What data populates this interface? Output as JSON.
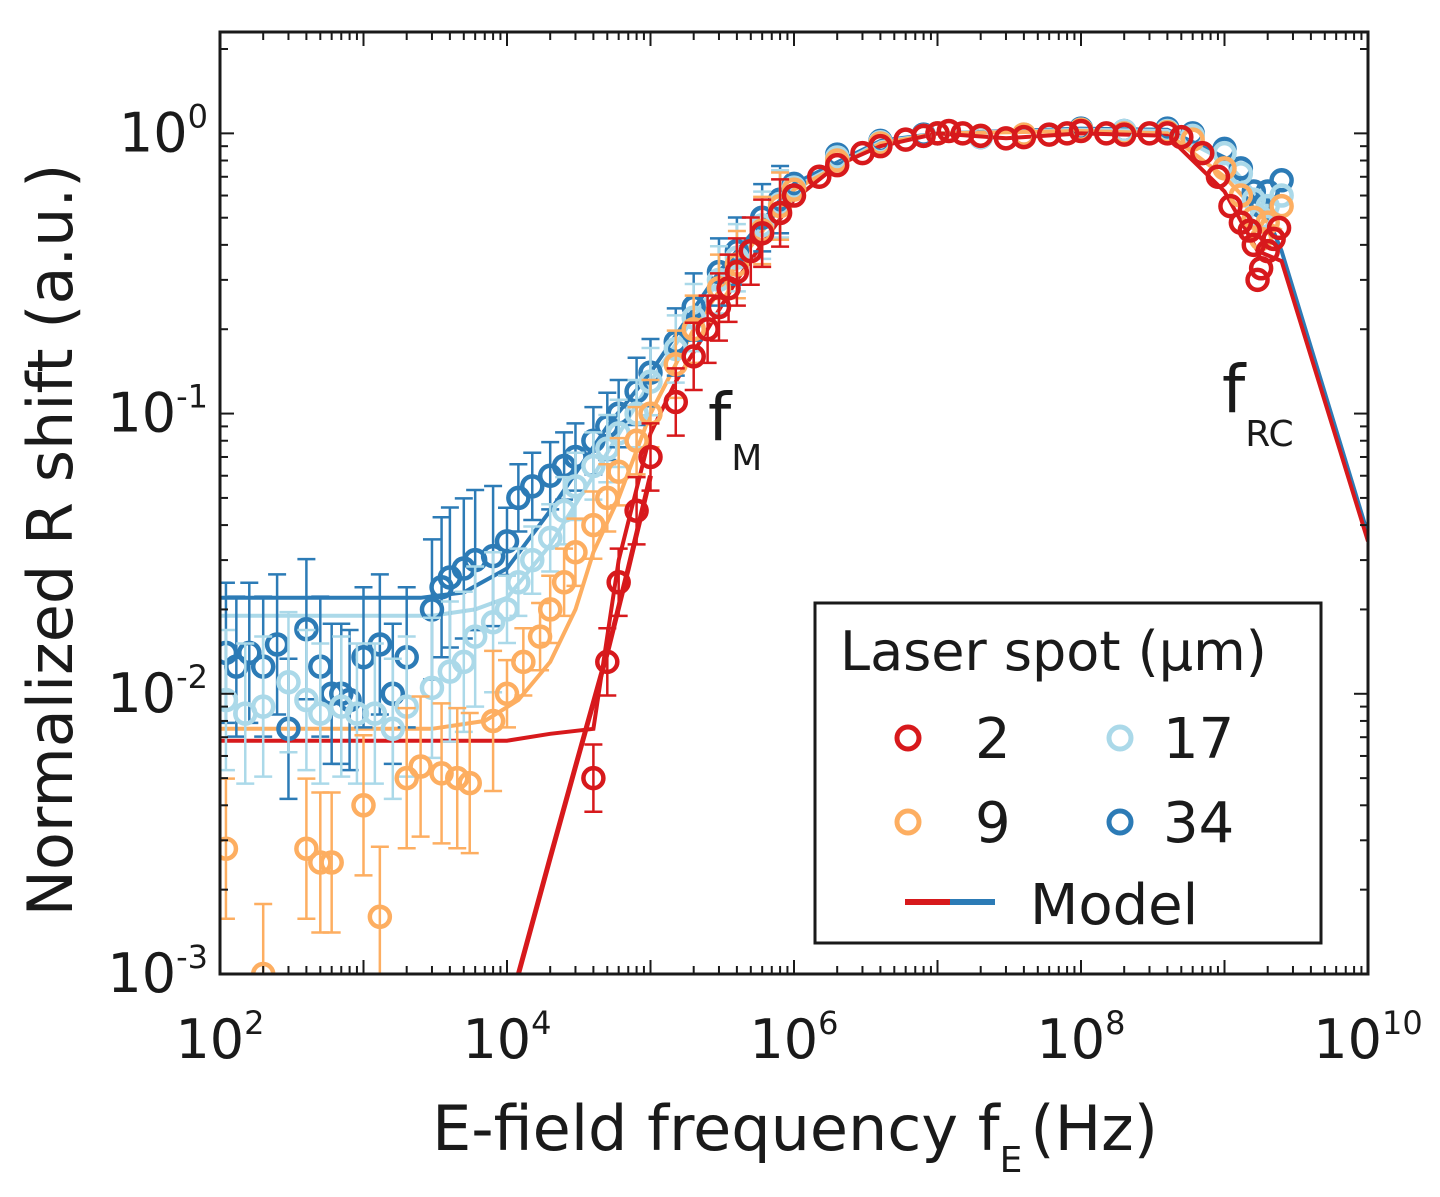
{
  "chart_data": {
    "type": "scatter",
    "xlabel": "E-field frequency f",
    "xlabel_sub": "E",
    "xlabel_unit": "(Hz)",
    "ylabel": "Normalized R shift (a.u.)",
    "x_scale": "log",
    "y_scale": "log",
    "xlim": [
      100,
      10000000000
    ],
    "ylim": [
      0.001,
      2.3
    ],
    "x_ticks": [
      {
        "base": "10",
        "exp": "2",
        "value": 100
      },
      {
        "base": "10",
        "exp": "4",
        "value": 10000
      },
      {
        "base": "10",
        "exp": "6",
        "value": 1000000
      },
      {
        "base": "10",
        "exp": "8",
        "value": 100000000
      },
      {
        "base": "10",
        "exp": "10",
        "value": 10000000000
      }
    ],
    "y_ticks": [
      {
        "base": "10",
        "exp": "0",
        "value": 1
      },
      {
        "base": "10",
        "exp": "-1",
        "value": 0.1
      },
      {
        "base": "10",
        "exp": "-2",
        "value": 0.01
      },
      {
        "base": "10",
        "exp": "-3",
        "value": 0.001
      }
    ],
    "grid": false,
    "legend": {
      "title": "Laser spot (μm)",
      "placement": "bottom-right",
      "entries": [
        "2",
        "9",
        "17",
        "34"
      ],
      "model_label": "Model"
    },
    "annotations": [
      {
        "text": "f",
        "sub": "M",
        "x": 200000,
        "y": 0.1
      },
      {
        "text": "f",
        "sub": "RC",
        "x": 2000000000,
        "y": 0.1
      }
    ],
    "colors": {
      "2": "#d7191c",
      "9": "#fdae61",
      "17": "#abd9e9",
      "34": "#2c7bb6"
    },
    "series": [
      {
        "name": "2",
        "color": "#d7191c",
        "points": [
          [
            40000,
            0.005
          ],
          [
            50000,
            0.013
          ],
          [
            60000,
            0.025
          ],
          [
            80000,
            0.045
          ],
          [
            100000,
            0.07
          ],
          [
            150000,
            0.11
          ],
          [
            200000,
            0.16
          ],
          [
            250000,
            0.2
          ],
          [
            300000,
            0.24
          ],
          [
            350000,
            0.28
          ],
          [
            400000,
            0.32
          ],
          [
            500000,
            0.38
          ],
          [
            600000,
            0.44
          ],
          [
            800000,
            0.52
          ],
          [
            1000000,
            0.6
          ],
          [
            1500000,
            0.7
          ],
          [
            2000000,
            0.77
          ],
          [
            3000000,
            0.85
          ],
          [
            4000000,
            0.9
          ],
          [
            6000000,
            0.95
          ],
          [
            8000000,
            0.98
          ],
          [
            10000000,
            1.0
          ],
          [
            12000000,
            1.02
          ],
          [
            15000000,
            1.0
          ],
          [
            20000000,
            0.98
          ],
          [
            30000000,
            0.96
          ],
          [
            40000000,
            0.97
          ],
          [
            60000000,
            0.99
          ],
          [
            80000000,
            1.0
          ],
          [
            100000000,
            1.02
          ],
          [
            150000000,
            1.0
          ],
          [
            200000000,
            0.99
          ],
          [
            300000000,
            1.0
          ],
          [
            400000000,
            1.0
          ],
          [
            500000000,
            0.97
          ],
          [
            700000000,
            0.85
          ],
          [
            900000000,
            0.7
          ],
          [
            1100000000,
            0.55
          ],
          [
            1300000000,
            0.48
          ],
          [
            1500000000,
            0.45
          ],
          [
            1600000000,
            0.4
          ],
          [
            1700000000,
            0.3
          ],
          [
            1800000000,
            0.33
          ],
          [
            2000000000,
            0.38
          ],
          [
            2200000000,
            0.42
          ],
          [
            2400000000,
            0.46
          ]
        ],
        "model": [
          [
            100,
            0.0068
          ],
          [
            10000,
            0.0068
          ],
          [
            20000,
            0.0072
          ],
          [
            40000,
            0.0075
          ],
          [
            60000,
            0.03
          ],
          [
            100000,
            0.085
          ],
          [
            150000,
            0.13
          ],
          [
            250000,
            0.2
          ],
          [
            400000,
            0.3
          ],
          [
            700000,
            0.45
          ],
          [
            1000000,
            0.58
          ],
          [
            2000000,
            0.77
          ],
          [
            4000000,
            0.9
          ],
          [
            10000000,
            1.0
          ],
          [
            30000000,
            0.96
          ],
          [
            100000000,
            1.0
          ],
          [
            400000000,
            0.98
          ],
          [
            1000000000,
            0.62
          ],
          [
            1700000000,
            0.38
          ],
          [
            2500000000,
            0.35
          ],
          [
            10000000000,
            0.035
          ]
        ],
        "model_low": [
          [
            12000,
            0.001
          ],
          [
            20000,
            0.0026
          ],
          [
            30000,
            0.0055
          ],
          [
            50000,
            0.014
          ],
          [
            70000,
            0.028
          ],
          [
            100000,
            0.06
          ]
        ]
      },
      {
        "name": "9",
        "color": "#fdae61",
        "points": [
          [
            110,
            0.0028
          ],
          [
            200,
            0.001
          ],
          [
            400,
            0.0028
          ],
          [
            500,
            0.0025
          ],
          [
            600,
            0.0025
          ],
          [
            1000,
            0.004
          ],
          [
            1300,
            0.0016
          ],
          [
            2000,
            0.005
          ],
          [
            2500,
            0.0055
          ],
          [
            3500,
            0.0052
          ],
          [
            4500,
            0.005
          ],
          [
            5500,
            0.0048
          ],
          [
            8000,
            0.008
          ],
          [
            10000,
            0.01
          ],
          [
            13000,
            0.013
          ],
          [
            17000,
            0.016
          ],
          [
            20000,
            0.02
          ],
          [
            25000,
            0.025
          ],
          [
            30000,
            0.032
          ],
          [
            40000,
            0.04
          ],
          [
            50000,
            0.05
          ],
          [
            60000,
            0.062
          ],
          [
            80000,
            0.08
          ],
          [
            100000,
            0.1
          ],
          [
            150000,
            0.15
          ],
          [
            200000,
            0.2
          ],
          [
            300000,
            0.28
          ],
          [
            400000,
            0.34
          ],
          [
            600000,
            0.45
          ],
          [
            800000,
            0.55
          ],
          [
            1000000,
            0.63
          ],
          [
            2000000,
            0.8
          ],
          [
            4000000,
            0.92
          ],
          [
            8000000,
            0.98
          ],
          [
            10000000,
            1.0
          ],
          [
            20000000,
            0.98
          ],
          [
            40000000,
            0.99
          ],
          [
            100000000,
            1.03
          ],
          [
            200000000,
            1.0
          ],
          [
            400000000,
            1.01
          ],
          [
            600000000,
            0.95
          ],
          [
            1000000000,
            0.75
          ],
          [
            1300000000,
            0.6
          ],
          [
            1600000000,
            0.5
          ],
          [
            1800000000,
            0.42
          ],
          [
            2000000000,
            0.48
          ],
          [
            2500000000,
            0.55
          ]
        ],
        "model": [
          [
            100,
            0.0075
          ],
          [
            3000,
            0.0075
          ],
          [
            7000,
            0.008
          ],
          [
            12000,
            0.0095
          ],
          [
            20000,
            0.013
          ],
          [
            30000,
            0.02
          ],
          [
            40000,
            0.032
          ],
          [
            60000,
            0.05
          ],
          [
            100000,
            0.1
          ],
          [
            200000,
            0.2
          ],
          [
            400000,
            0.34
          ],
          [
            1000000,
            0.63
          ],
          [
            4000000,
            0.92
          ],
          [
            10000000,
            1.0
          ],
          [
            100000000,
            1.02
          ],
          [
            400000000,
            1.0
          ],
          [
            1000000000,
            0.7
          ],
          [
            2000000000,
            0.48
          ],
          [
            2500000000,
            0.45
          ]
        ]
      },
      {
        "name": "17",
        "color": "#abd9e9",
        "points": [
          [
            110,
            0.0095
          ],
          [
            150,
            0.0085
          ],
          [
            200,
            0.009
          ],
          [
            300,
            0.011
          ],
          [
            400,
            0.0095
          ],
          [
            500,
            0.0085
          ],
          [
            700,
            0.009
          ],
          [
            900,
            0.0085
          ],
          [
            1200,
            0.0085
          ],
          [
            1600,
            0.0075
          ],
          [
            2000,
            0.009
          ],
          [
            3000,
            0.0105
          ],
          [
            4000,
            0.012
          ],
          [
            5000,
            0.013
          ],
          [
            6000,
            0.016
          ],
          [
            8000,
            0.018
          ],
          [
            10000,
            0.02
          ],
          [
            12000,
            0.025
          ],
          [
            15000,
            0.03
          ],
          [
            20000,
            0.036
          ],
          [
            25000,
            0.045
          ],
          [
            30000,
            0.055
          ],
          [
            40000,
            0.065
          ],
          [
            50000,
            0.075
          ],
          [
            60000,
            0.085
          ],
          [
            80000,
            0.1
          ],
          [
            100000,
            0.13
          ],
          [
            150000,
            0.17
          ],
          [
            200000,
            0.22
          ],
          [
            300000,
            0.3
          ],
          [
            400000,
            0.36
          ],
          [
            600000,
            0.47
          ],
          [
            800000,
            0.56
          ],
          [
            1000000,
            0.64
          ],
          [
            2000000,
            0.82
          ],
          [
            4000000,
            0.93
          ],
          [
            8000000,
            0.98
          ],
          [
            10000000,
            1.0
          ],
          [
            20000000,
            0.97
          ],
          [
            40000000,
            0.99
          ],
          [
            100000000,
            1.03
          ],
          [
            200000000,
            1.02
          ],
          [
            400000000,
            1.02
          ],
          [
            600000000,
            0.98
          ],
          [
            1000000000,
            0.85
          ],
          [
            1300000000,
            0.72
          ],
          [
            1600000000,
            0.58
          ],
          [
            1800000000,
            0.5
          ],
          [
            2000000000,
            0.55
          ],
          [
            2500000000,
            0.6
          ]
        ],
        "model": [
          [
            100,
            0.019
          ],
          [
            3000,
            0.019
          ],
          [
            6000,
            0.02
          ],
          [
            10000,
            0.022
          ],
          [
            20000,
            0.034
          ],
          [
            40000,
            0.06
          ],
          [
            100000,
            0.13
          ],
          [
            300000,
            0.3
          ],
          [
            1000000,
            0.64
          ],
          [
            4000000,
            0.93
          ],
          [
            10000000,
            1.0
          ],
          [
            100000000,
            1.03
          ],
          [
            400000000,
            1.02
          ],
          [
            1000000000,
            0.8
          ],
          [
            2000000000,
            0.55
          ],
          [
            2500000000,
            0.5
          ]
        ]
      },
      {
        "name": "34",
        "color": "#2c7bb6",
        "points": [
          [
            110,
            0.014
          ],
          [
            130,
            0.0125
          ],
          [
            160,
            0.014
          ],
          [
            200,
            0.0125
          ],
          [
            250,
            0.015
          ],
          [
            300,
            0.0075
          ],
          [
            400,
            0.017
          ],
          [
            500,
            0.0125
          ],
          [
            600,
            0.01
          ],
          [
            700,
            0.01
          ],
          [
            800,
            0.0095
          ],
          [
            1000,
            0.0135
          ],
          [
            1300,
            0.015
          ],
          [
            1600,
            0.01
          ],
          [
            2000,
            0.0135
          ],
          [
            3000,
            0.02
          ],
          [
            3500,
            0.024
          ],
          [
            4000,
            0.026
          ],
          [
            5000,
            0.028
          ],
          [
            6000,
            0.03
          ],
          [
            8000,
            0.031
          ],
          [
            10000,
            0.035
          ],
          [
            12000,
            0.05
          ],
          [
            15000,
            0.055
          ],
          [
            20000,
            0.06
          ],
          [
            25000,
            0.065
          ],
          [
            30000,
            0.07
          ],
          [
            40000,
            0.08
          ],
          [
            50000,
            0.09
          ],
          [
            60000,
            0.1
          ],
          [
            80000,
            0.12
          ],
          [
            100000,
            0.14
          ],
          [
            150000,
            0.18
          ],
          [
            200000,
            0.24
          ],
          [
            300000,
            0.32
          ],
          [
            400000,
            0.38
          ],
          [
            600000,
            0.5
          ],
          [
            800000,
            0.58
          ],
          [
            1000000,
            0.66
          ],
          [
            2000000,
            0.84
          ],
          [
            4000000,
            0.94
          ],
          [
            8000000,
            0.99
          ],
          [
            10000000,
            1.0
          ],
          [
            20000000,
            0.97
          ],
          [
            40000000,
            0.98
          ],
          [
            100000000,
            1.04
          ],
          [
            200000000,
            1.02
          ],
          [
            400000000,
            1.04
          ],
          [
            600000000,
            1.0
          ],
          [
            1000000000,
            0.88
          ],
          [
            1300000000,
            0.75
          ],
          [
            1600000000,
            0.62
          ],
          [
            1800000000,
            0.55
          ],
          [
            2000000000,
            0.62
          ],
          [
            2500000000,
            0.68
          ]
        ],
        "model": [
          [
            100,
            0.022
          ],
          [
            2500,
            0.022
          ],
          [
            5000,
            0.023
          ],
          [
            10000,
            0.028
          ],
          [
            20000,
            0.045
          ],
          [
            50000,
            0.09
          ],
          [
            100000,
            0.14
          ],
          [
            300000,
            0.32
          ],
          [
            1000000,
            0.66
          ],
          [
            4000000,
            0.94
          ],
          [
            10000000,
            1.0
          ],
          [
            100000000,
            1.04
          ],
          [
            400000000,
            1.03
          ],
          [
            1000000000,
            0.82
          ],
          [
            2000000000,
            0.5
          ],
          [
            2500000000,
            0.38
          ],
          [
            10000000000,
            0.037
          ]
        ]
      }
    ]
  }
}
